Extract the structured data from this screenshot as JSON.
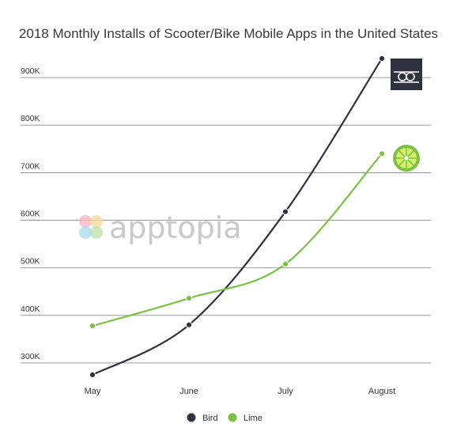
{
  "chart_data": {
    "type": "line",
    "title": "2018 Monthly Installs of Scooter/Bike Mobile Apps in the United States",
    "categories": [
      "May",
      "June",
      "July",
      "August"
    ],
    "series": [
      {
        "name": "Bird",
        "color": "#2e3240",
        "values": [
          275000,
          380000,
          618000,
          940000
        ]
      },
      {
        "name": "Lime",
        "color": "#7ac143",
        "values": [
          378000,
          436000,
          508000,
          740000
        ]
      }
    ],
    "y_ticks": [
      {
        "value": 300000,
        "label": "300K"
      },
      {
        "value": 400000,
        "label": "400K"
      },
      {
        "value": 500000,
        "label": "500K"
      },
      {
        "value": 600000,
        "label": "600K"
      },
      {
        "value": 700000,
        "label": "700K"
      },
      {
        "value": 800000,
        "label": "800K"
      },
      {
        "value": 900000,
        "label": "900K"
      }
    ],
    "ylim": [
      260000,
      960000
    ],
    "grid": true,
    "legend_position": "bottom",
    "xlabel": "",
    "ylabel": ""
  },
  "watermark": {
    "text": "apptopia"
  },
  "icons": {
    "bird": "bird-logo-icon",
    "lime": "lime-logo-icon"
  }
}
